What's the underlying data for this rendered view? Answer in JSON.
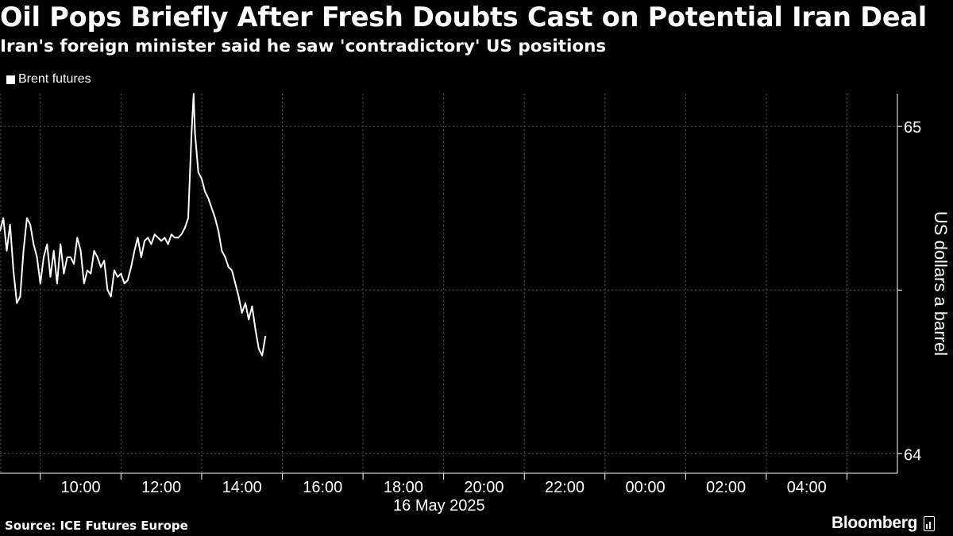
{
  "header": {
    "title": "Oil Pops Briefly After Fresh Doubts Cast on Potential Iran Deal",
    "subtitle": "Iran's foreign minister said he saw 'contradictory' US positions"
  },
  "footer": {
    "source": "Source: ICE Futures Europe",
    "brand": "Bloomberg"
  },
  "colors": {
    "background": "#000000",
    "line": "#ffffff",
    "grid": "#555555",
    "text": "#ffffff"
  },
  "chart_data": {
    "type": "line",
    "legend": [
      "Brent futures"
    ],
    "legend_position": "top-left",
    "ylabel": "US dollars a barrel",
    "xlabel": "16 May 2025",
    "y_axis_side": "right",
    "ylim": [
      63.94,
      65.1
    ],
    "yticks": [
      64,
      64.5,
      65
    ],
    "ytick_labels": [
      "64",
      "",
      "65"
    ],
    "xlim": [
      "2025-05-16 08:00",
      "2025-05-17 06:15"
    ],
    "xticks": [
      "2025-05-16 10:00",
      "2025-05-16 12:00",
      "2025-05-16 14:00",
      "2025-05-16 16:00",
      "2025-05-16 18:00",
      "2025-05-16 20:00",
      "2025-05-16 22:00",
      "2025-05-17 00:00",
      "2025-05-17 02:00",
      "2025-05-17 04:00"
    ],
    "xtick_labels": [
      "10:00",
      "12:00",
      "14:00",
      "16:00",
      "18:00",
      "20:00",
      "22:00",
      "00:00",
      "02:00",
      "04:00"
    ],
    "grid": true,
    "series": [
      {
        "name": "Brent futures",
        "x": [
          "2025-05-16 08:00",
          "2025-05-16 08:05",
          "2025-05-16 08:10",
          "2025-05-16 08:15",
          "2025-05-16 08:20",
          "2025-05-16 08:25",
          "2025-05-16 08:30",
          "2025-05-16 08:35",
          "2025-05-16 08:40",
          "2025-05-16 08:45",
          "2025-05-16 08:50",
          "2025-05-16 08:55",
          "2025-05-16 09:00",
          "2025-05-16 09:05",
          "2025-05-16 09:10",
          "2025-05-16 09:15",
          "2025-05-16 09:20",
          "2025-05-16 09:25",
          "2025-05-16 09:30",
          "2025-05-16 09:35",
          "2025-05-16 09:40",
          "2025-05-16 09:45",
          "2025-05-16 09:50",
          "2025-05-16 09:55",
          "2025-05-16 10:00",
          "2025-05-16 10:05",
          "2025-05-16 10:10",
          "2025-05-16 10:15",
          "2025-05-16 10:20",
          "2025-05-16 10:25",
          "2025-05-16 10:30",
          "2025-05-16 10:35",
          "2025-05-16 10:40",
          "2025-05-16 10:45",
          "2025-05-16 10:50",
          "2025-05-16 10:55",
          "2025-05-16 11:00",
          "2025-05-16 11:05",
          "2025-05-16 11:10",
          "2025-05-16 11:15",
          "2025-05-16 11:20",
          "2025-05-16 11:25",
          "2025-05-16 11:30",
          "2025-05-16 11:35",
          "2025-05-16 11:40",
          "2025-05-16 11:45",
          "2025-05-16 11:50",
          "2025-05-16 11:55",
          "2025-05-16 12:00",
          "2025-05-16 12:05",
          "2025-05-16 12:10",
          "2025-05-16 12:15",
          "2025-05-16 12:20",
          "2025-05-16 12:25",
          "2025-05-16 12:30",
          "2025-05-16 12:35",
          "2025-05-16 12:40",
          "2025-05-16 12:45",
          "2025-05-16 12:48",
          "2025-05-16 12:50",
          "2025-05-16 12:55",
          "2025-05-16 13:00",
          "2025-05-16 13:05",
          "2025-05-16 13:10",
          "2025-05-16 13:15",
          "2025-05-16 13:20",
          "2025-05-16 13:25",
          "2025-05-16 13:30",
          "2025-05-16 13:35",
          "2025-05-16 13:40",
          "2025-05-16 13:45",
          "2025-05-16 13:50",
          "2025-05-16 13:55",
          "2025-05-16 14:00",
          "2025-05-16 14:05",
          "2025-05-16 14:10",
          "2025-05-16 14:15",
          "2025-05-16 14:20",
          "2025-05-16 14:25",
          "2025-05-16 14:30",
          "2025-05-16 14:35"
        ],
        "values": [
          64.68,
          64.72,
          64.62,
          64.7,
          64.56,
          64.46,
          64.48,
          64.62,
          64.72,
          64.7,
          64.64,
          64.6,
          64.52,
          64.6,
          64.64,
          64.54,
          64.62,
          64.52,
          64.64,
          64.55,
          64.6,
          64.6,
          64.58,
          64.66,
          64.62,
          64.52,
          64.56,
          64.55,
          64.62,
          64.6,
          64.57,
          64.59,
          64.5,
          64.48,
          64.56,
          64.54,
          64.55,
          64.52,
          64.53,
          64.57,
          64.62,
          64.66,
          64.6,
          64.65,
          64.66,
          64.64,
          64.67,
          64.66,
          64.65,
          64.66,
          64.64,
          64.67,
          64.66,
          64.66,
          64.67,
          64.69,
          64.72,
          64.98,
          65.1,
          64.98,
          64.86,
          64.84,
          64.8,
          64.78,
          64.75,
          64.72,
          64.68,
          64.62,
          64.6,
          64.57,
          64.56,
          64.52,
          64.48,
          64.43,
          64.46,
          64.41,
          64.45,
          64.38,
          64.32,
          64.3,
          64.36
        ]
      }
    ]
  }
}
